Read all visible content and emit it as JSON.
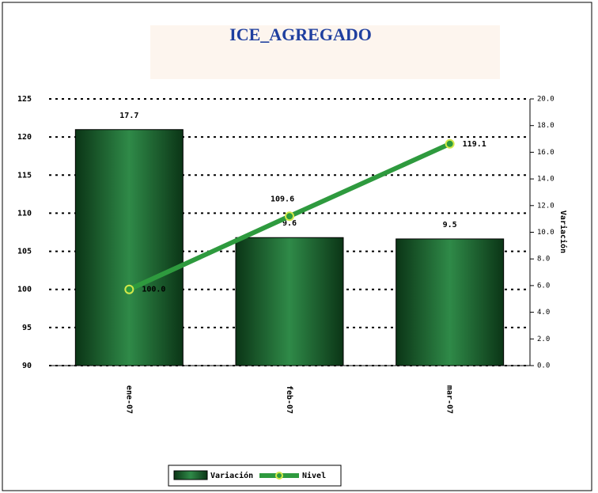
{
  "chart_data": {
    "type": "bar_line",
    "title": "ICE_AGREGADO",
    "categories": [
      "ene-07",
      "feb-07",
      "mar-07"
    ],
    "series": [
      {
        "name": "Variación",
        "type": "bar",
        "axis": "y2",
        "color": "#1e6b34",
        "values": [
          17.7,
          9.6,
          9.5
        ]
      },
      {
        "name": "Nivel",
        "type": "line",
        "axis": "y",
        "color": "#2e9a3e",
        "values": [
          100.0,
          109.6,
          119.1
        ],
        "value_labels": [
          "100.0",
          "109.6",
          "119.1"
        ]
      }
    ],
    "ylim": [
      90,
      125
    ],
    "yticks": [
      90,
      95,
      100,
      105,
      110,
      115,
      120,
      125
    ],
    "y2lim": [
      0,
      20
    ],
    "y2ticks": [
      {
        "value": 0,
        "label": "0.0"
      },
      {
        "value": 2,
        "label": "2.0"
      },
      {
        "value": 4,
        "label": "4.0"
      },
      {
        "value": 6,
        "label": "6.0"
      },
      {
        "value": 8,
        "label": "8.0"
      },
      {
        "value": 10,
        "label": "10.0"
      },
      {
        "value": 12,
        "label": "12.0"
      },
      {
        "value": 14,
        "label": "14.0"
      },
      {
        "value": 16,
        "label": "16.0"
      },
      {
        "value": 18,
        "label": "18.0"
      },
      {
        "value": 20,
        "label": "20.0"
      }
    ],
    "y2label": "Variación",
    "grid": true
  }
}
